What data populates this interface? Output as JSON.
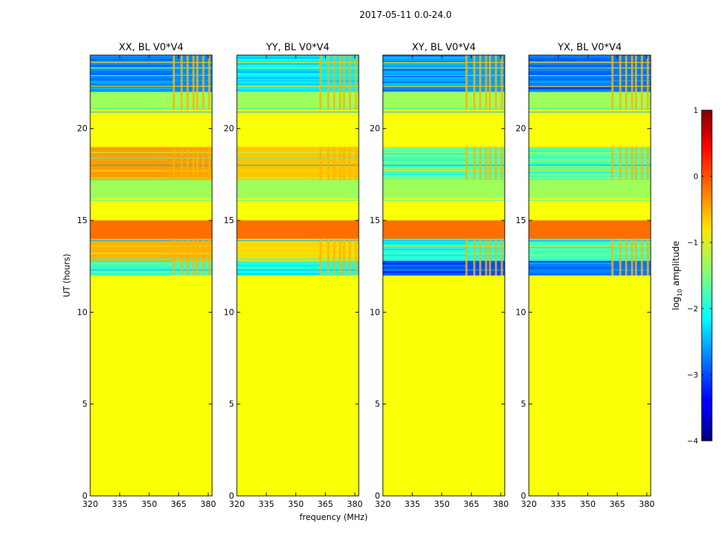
{
  "suptitle": "2017-05-11 0.0-24.0",
  "colorbar": {
    "label": "log",
    "label_sub": "10",
    "label_rest": " amplitude",
    "range": [
      -4,
      1
    ],
    "ticks": [
      1,
      0,
      -1,
      -2,
      -3,
      -4
    ],
    "tick_labels": [
      "1",
      "0",
      "−1",
      "−2",
      "−3",
      "−4"
    ]
  },
  "colors": {
    "background_band": "#9eff5a",
    "strong_band": "#ff6e00"
  },
  "chart_data": [
    {
      "type": "heatmap",
      "title": "XX, BL V0*V4",
      "xlabel": "",
      "ylabel": "UT (hours)",
      "xlim": [
        320,
        382
      ],
      "ylim": [
        0,
        24
      ],
      "xticks": [
        320,
        335,
        350,
        365,
        380
      ],
      "yticks": [
        0,
        5,
        10,
        15,
        20
      ],
      "xtick_labels": [
        "320",
        "335",
        "350",
        "365",
        "380"
      ],
      "ytick_labels": [
        "0",
        "5",
        "10",
        "15",
        "20"
      ],
      "z": "log10 amplitude",
      "bands": [
        {
          "ut": [
            0,
            12
          ],
          "log_amp": -0.9
        },
        {
          "ut": [
            12,
            12.8
          ],
          "log_amp": -1.8
        },
        {
          "ut": [
            12.8,
            14
          ],
          "log_amp": -0.5
        },
        {
          "ut": [
            14,
            15
          ],
          "log_amp": 0.1
        },
        {
          "ut": [
            15,
            16.2
          ],
          "log_amp": -0.9
        },
        {
          "ut": [
            17.2,
            19
          ],
          "log_amp": -0.4
        },
        {
          "ut": [
            19,
            21
          ],
          "log_amp": -0.9
        },
        {
          "ut": [
            22,
            24
          ],
          "log_amp": -2.7
        }
      ]
    },
    {
      "type": "heatmap",
      "title": "YY, BL V0*V4",
      "xlabel": "frequency (MHz)",
      "ylabel": "",
      "xlim": [
        320,
        382
      ],
      "ylim": [
        0,
        24
      ],
      "xticks": [
        320,
        335,
        350,
        365,
        380
      ],
      "yticks": [
        0,
        5,
        10,
        15,
        20
      ],
      "xtick_labels": [
        "320",
        "335",
        "350",
        "365",
        "380"
      ],
      "ytick_labels": [
        "0",
        "5",
        "10",
        "15",
        "20"
      ],
      "z": "log10 amplitude",
      "bands": [
        {
          "ut": [
            0,
            12
          ],
          "log_amp": -0.9
        },
        {
          "ut": [
            12,
            12.8
          ],
          "log_amp": -2.0
        },
        {
          "ut": [
            12.8,
            14
          ],
          "log_amp": -0.7
        },
        {
          "ut": [
            14,
            15
          ],
          "log_amp": 0.1
        },
        {
          "ut": [
            15,
            16.2
          ],
          "log_amp": -0.9
        },
        {
          "ut": [
            17.2,
            19
          ],
          "log_amp": -0.6
        },
        {
          "ut": [
            19,
            21
          ],
          "log_amp": -0.9
        },
        {
          "ut": [
            22,
            24
          ],
          "log_amp": -2.2
        }
      ]
    },
    {
      "type": "heatmap",
      "title": "XY, BL V0*V4",
      "xlabel": "",
      "ylabel": "",
      "xlim": [
        320,
        382
      ],
      "ylim": [
        0,
        24
      ],
      "xticks": [
        320,
        335,
        350,
        365,
        380
      ],
      "yticks": [
        0,
        5,
        10,
        15,
        20
      ],
      "xtick_labels": [
        "320",
        "335",
        "350",
        "365",
        "380"
      ],
      "ytick_labels": [
        "0",
        "5",
        "10",
        "15",
        "20"
      ],
      "z": "log10 amplitude",
      "bands": [
        {
          "ut": [
            0,
            12
          ],
          "log_amp": -0.9
        },
        {
          "ut": [
            12,
            12.8
          ],
          "log_amp": -3.0
        },
        {
          "ut": [
            12.8,
            14
          ],
          "log_amp": -2.0
        },
        {
          "ut": [
            14,
            15
          ],
          "log_amp": 0.1
        },
        {
          "ut": [
            15,
            16.2
          ],
          "log_amp": -0.9
        },
        {
          "ut": [
            17.2,
            19
          ],
          "log_amp": -1.7
        },
        {
          "ut": [
            19,
            21
          ],
          "log_amp": -0.9
        },
        {
          "ut": [
            22,
            24
          ],
          "log_amp": -2.6
        }
      ]
    },
    {
      "type": "heatmap",
      "title": "YX, BL V0*V4",
      "xlabel": "",
      "ylabel": "",
      "xlim": [
        320,
        382
      ],
      "ylim": [
        0,
        24
      ],
      "xticks": [
        320,
        335,
        350,
        365,
        380
      ],
      "yticks": [
        0,
        5,
        10,
        15,
        20
      ],
      "xtick_labels": [
        "320",
        "335",
        "350",
        "365",
        "380"
      ],
      "ytick_labels": [
        "0",
        "5",
        "10",
        "15",
        "20"
      ],
      "z": "log10 amplitude",
      "bands": [
        {
          "ut": [
            0,
            12
          ],
          "log_amp": -0.9
        },
        {
          "ut": [
            12,
            12.8
          ],
          "log_amp": -2.8
        },
        {
          "ut": [
            12.8,
            14
          ],
          "log_amp": -1.8
        },
        {
          "ut": [
            14,
            15
          ],
          "log_amp": 0.1
        },
        {
          "ut": [
            15,
            16.2
          ],
          "log_amp": -0.9
        },
        {
          "ut": [
            17.2,
            19
          ],
          "log_amp": -1.7
        },
        {
          "ut": [
            19,
            21
          ],
          "log_amp": -0.9
        },
        {
          "ut": [
            22,
            24
          ],
          "log_amp": -2.8
        }
      ]
    }
  ]
}
